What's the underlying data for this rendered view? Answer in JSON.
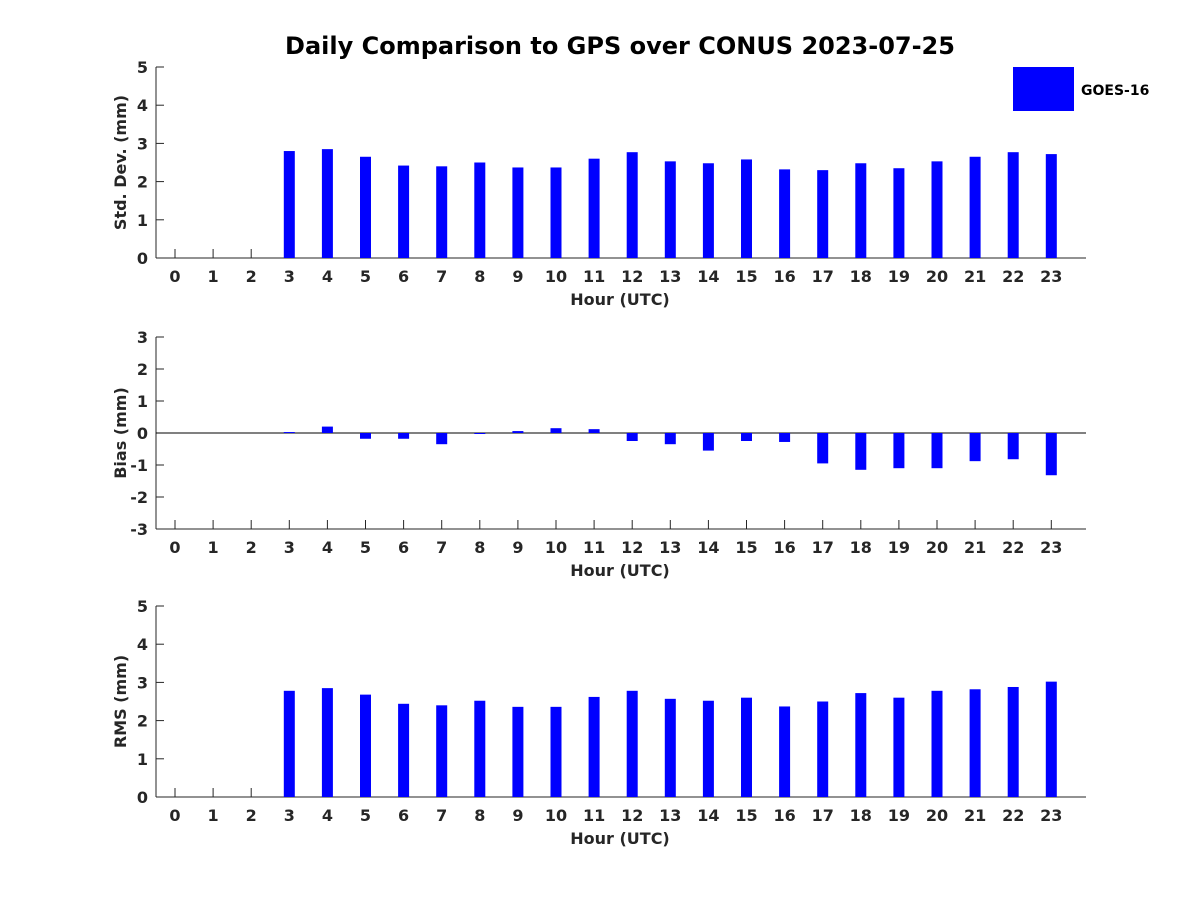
{
  "title": "Daily Comparison to GPS over CONUS 2023-07-25",
  "legend": {
    "label": "GOES-16",
    "color": "#0000FF",
    "placement": "top-right"
  },
  "chart_data": [
    {
      "type": "bar",
      "name": "std-dev",
      "ylabel": "Std. Dev. (mm)",
      "xlabel": "Hour (UTC)",
      "ylim": [
        0,
        5
      ],
      "yticks": [
        0,
        1,
        2,
        3,
        4,
        5
      ],
      "ytick_labels": [
        "0",
        "1",
        "2",
        "3",
        "4",
        "5"
      ],
      "categories": [
        "0",
        "1",
        "2",
        "3",
        "4",
        "5",
        "6",
        "7",
        "8",
        "9",
        "10",
        "11",
        "12",
        "13",
        "14",
        "15",
        "16",
        "17",
        "18",
        "19",
        "20",
        "21",
        "22",
        "23"
      ],
      "series": [
        {
          "name": "GOES-16",
          "values": [
            null,
            null,
            null,
            2.8,
            2.85,
            2.65,
            2.42,
            2.4,
            2.5,
            2.37,
            2.37,
            2.6,
            2.77,
            2.53,
            2.48,
            2.58,
            2.32,
            2.3,
            2.48,
            2.35,
            2.53,
            2.65,
            2.77,
            2.72
          ]
        }
      ]
    },
    {
      "type": "bar",
      "name": "bias",
      "ylabel": "Bias (mm)",
      "xlabel": "Hour (UTC)",
      "ylim": [
        -3,
        3
      ],
      "yticks": [
        -3,
        -2,
        -1,
        0,
        1,
        2,
        3
      ],
      "ytick_labels": [
        "-3",
        "-2",
        "-1",
        "0",
        "1",
        "2",
        "3"
      ],
      "categories": [
        "0",
        "1",
        "2",
        "3",
        "4",
        "5",
        "6",
        "7",
        "8",
        "9",
        "10",
        "11",
        "12",
        "13",
        "14",
        "15",
        "16",
        "17",
        "18",
        "19",
        "20",
        "21",
        "22",
        "23"
      ],
      "series": [
        {
          "name": "GOES-16",
          "values": [
            null,
            null,
            null,
            0.03,
            0.2,
            -0.18,
            -0.18,
            -0.35,
            -0.02,
            0.06,
            0.15,
            0.12,
            -0.25,
            -0.35,
            -0.55,
            -0.25,
            -0.28,
            -0.95,
            -1.15,
            -1.1,
            -1.1,
            -0.88,
            -0.82,
            -1.32
          ]
        }
      ]
    },
    {
      "type": "bar",
      "name": "rms",
      "ylabel": "RMS (mm)",
      "xlabel": "Hour (UTC)",
      "ylim": [
        0,
        5
      ],
      "yticks": [
        0,
        1,
        2,
        3,
        4,
        5
      ],
      "ytick_labels": [
        "0",
        "1",
        "2",
        "3",
        "4",
        "5"
      ],
      "categories": [
        "0",
        "1",
        "2",
        "3",
        "4",
        "5",
        "6",
        "7",
        "8",
        "9",
        "10",
        "11",
        "12",
        "13",
        "14",
        "15",
        "16",
        "17",
        "18",
        "19",
        "20",
        "21",
        "22",
        "23"
      ],
      "series": [
        {
          "name": "GOES-16",
          "values": [
            null,
            null,
            null,
            2.78,
            2.85,
            2.68,
            2.44,
            2.4,
            2.52,
            2.36,
            2.36,
            2.62,
            2.78,
            2.57,
            2.52,
            2.6,
            2.37,
            2.5,
            2.72,
            2.6,
            2.78,
            2.82,
            2.88,
            3.02
          ]
        }
      ]
    }
  ]
}
